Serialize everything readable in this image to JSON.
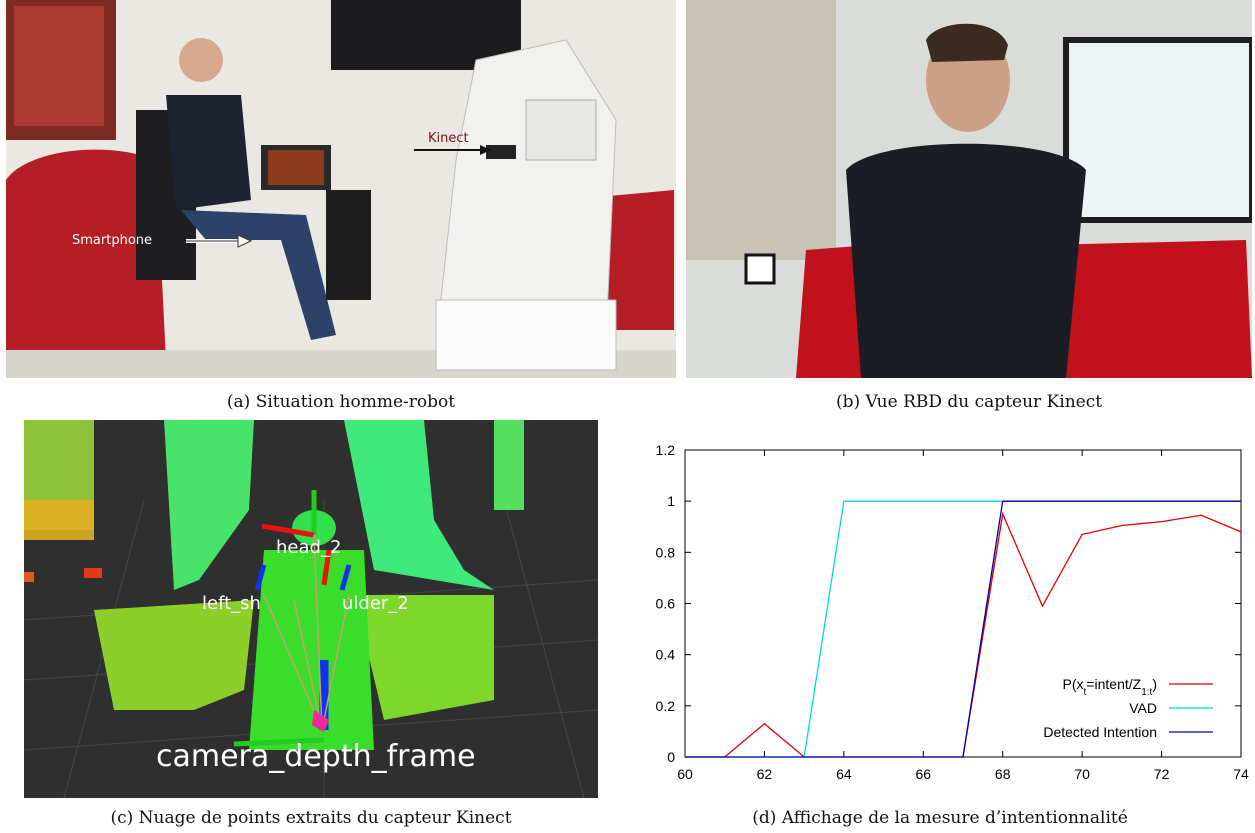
{
  "panel_a": {
    "labels": {
      "kinect": "Kinect",
      "smartphone": "Smartphone"
    },
    "caption": "(a) Situation homme-robot"
  },
  "panel_b": {
    "caption": "(b) Vue RBD du capteur Kinect"
  },
  "panel_c": {
    "frame_labels": {
      "head": "head_2",
      "left_shoulder": "left_sh",
      "right_shoulder": "ulder_2",
      "camera": "camera_depth_frame"
    },
    "caption": "(c) Nuage de points extraits du capteur Kinect"
  },
  "panel_d": {
    "caption": "(d) Affichage de la mesure d’intentionnalité"
  },
  "chart_data": {
    "type": "line",
    "title": "",
    "xlabel": "",
    "ylabel": "",
    "xlim": [
      60,
      74
    ],
    "ylim": [
      0,
      1.2
    ],
    "x_ticks": [
      "60",
      "62",
      "64",
      "66",
      "68",
      "70",
      "72",
      "74"
    ],
    "y_ticks": [
      "0",
      "0.2",
      "0.4",
      "0.6",
      "0.8",
      "1",
      "1.2"
    ],
    "legend_position": "bottom-right",
    "grid": false,
    "series": [
      {
        "name": "P(xt=intent/Z1:t)",
        "legend_parts": {
          "pre": "P(x",
          "sub1": "t",
          "mid": "=intent/Z",
          "sub2": "1:t",
          "post": ")"
        },
        "color": "#e00000",
        "x": [
          60,
          61,
          62,
          63,
          64,
          65,
          66,
          67,
          68,
          69,
          70,
          71,
          72,
          73,
          74
        ],
        "y": [
          0,
          0,
          0.13,
          0,
          0,
          0,
          0,
          0,
          0.95,
          0.59,
          0.87,
          0.905,
          0.92,
          0.945,
          0.88
        ]
      },
      {
        "name": "VAD",
        "color": "#00d8d8",
        "x": [
          60,
          63,
          64,
          67,
          68,
          74
        ],
        "y": [
          0,
          0,
          1,
          1,
          1,
          1
        ]
      },
      {
        "name": "Detected Intention",
        "color": "#0000b0",
        "x": [
          60,
          67,
          68,
          74
        ],
        "y": [
          0,
          0,
          1,
          1
        ]
      }
    ]
  }
}
